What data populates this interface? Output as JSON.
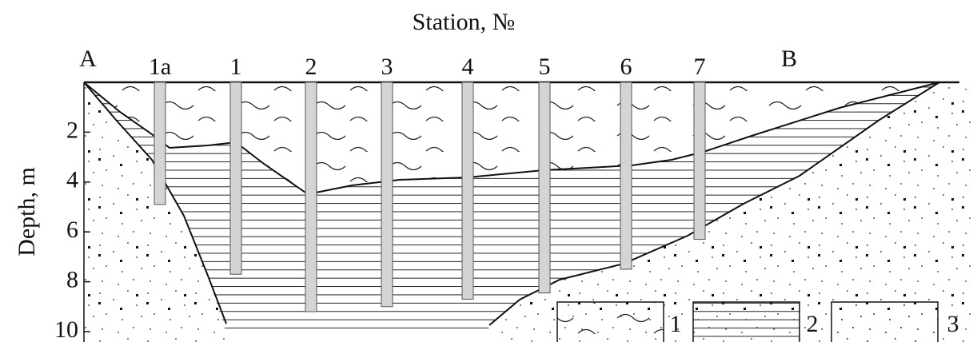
{
  "title": "Station, №",
  "y_label": "Depth, m",
  "start_label": "A",
  "end_label": "B",
  "stations": [
    {
      "label": "1a",
      "depth": 4.9
    },
    {
      "label": "1",
      "depth": 7.7
    },
    {
      "label": "2",
      "depth": 9.2
    },
    {
      "label": "3",
      "depth": 9.0
    },
    {
      "label": "4",
      "depth": 8.7
    },
    {
      "label": "5",
      "depth": 8.45
    },
    {
      "label": "6",
      "depth": 7.5
    },
    {
      "label": "7",
      "depth": 6.3
    }
  ],
  "ylim": [
    0,
    10
  ],
  "yticks": [
    2,
    4,
    6,
    8,
    10
  ],
  "legend": [
    "1",
    "2",
    "3"
  ]
}
